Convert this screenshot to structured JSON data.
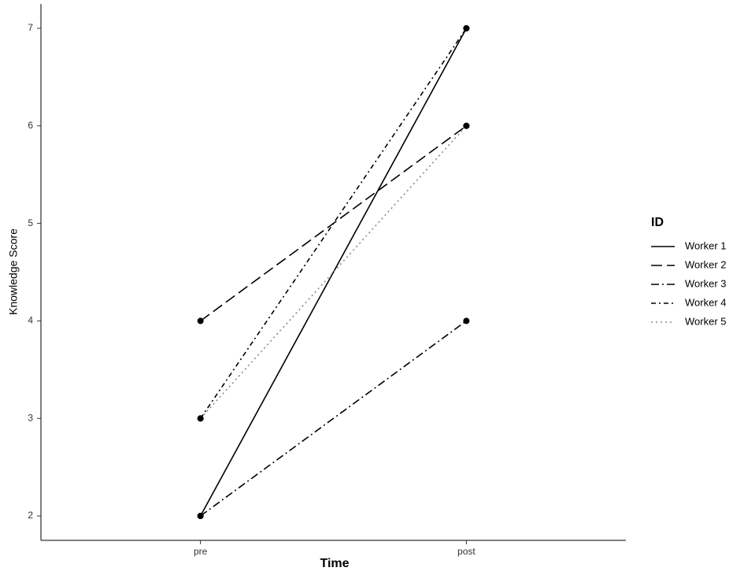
{
  "chart_data": {
    "type": "line",
    "x_label": "Time",
    "y_label": "Knowledge Score",
    "legend_title": "ID",
    "categories": [
      "pre",
      "post"
    ],
    "series": [
      {
        "name": "Worker 1",
        "color": "#000000",
        "dash": "solid",
        "values": [
          2,
          7
        ]
      },
      {
        "name": "Worker 2",
        "color": "#000000",
        "dash": "longdash",
        "values": [
          4,
          6
        ]
      },
      {
        "name": "Worker 3",
        "color": "#000000",
        "dash": "dashdot",
        "values": [
          2,
          4
        ]
      },
      {
        "name": "Worker 4",
        "color": "#000000",
        "dash": "dotdash",
        "values": [
          3,
          7
        ]
      },
      {
        "name": "Worker 5",
        "color": "#888888",
        "dash": "dotted",
        "values": [
          3,
          6
        ]
      }
    ],
    "ylim": [
      1.75,
      7.25
    ],
    "yticks": [
      2,
      3,
      4,
      5,
      6,
      7
    ],
    "legend": "right",
    "grid": false
  }
}
